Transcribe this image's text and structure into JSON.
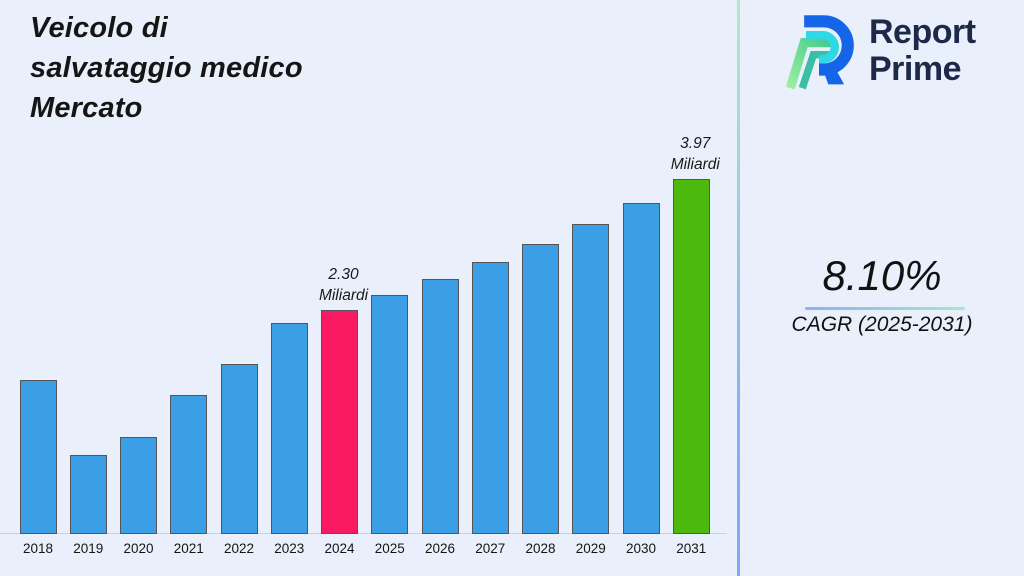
{
  "page": {
    "background": "#EAF0FB"
  },
  "header": {
    "title_lines": [
      "Veicolo di",
      "salvataggio medico",
      "Mercato"
    ],
    "title_full": "Veicolo di salvataggio medico Mercato"
  },
  "brand": {
    "line1": "Report",
    "line2": "Prime",
    "text_color": "#1E2949",
    "mark_colors": {
      "blue": "#1565E9",
      "cyan": "#2FD8E6",
      "green_light": "#9CEFA0",
      "green_teal": "#3ABEA6"
    }
  },
  "chart_data": {
    "type": "bar",
    "title": "Veicolo di salvataggio medico Mercato",
    "xlabel": "",
    "ylabel": "",
    "value_unit": "Miliardi",
    "grid": false,
    "legend": false,
    "y_axis_visible": false,
    "categories": [
      "2018",
      "2019",
      "2020",
      "2021",
      "2022",
      "2023",
      "2024",
      "2025",
      "2026",
      "2027",
      "2028",
      "2029",
      "2030",
      "2031"
    ],
    "values": [
      1.41,
      0.45,
      0.68,
      1.22,
      1.61,
      2.13,
      2.3,
      2.49,
      2.69,
      2.91,
      3.14,
      3.4,
      3.67,
      3.97
    ],
    "labeled_points": [
      {
        "year": "2024",
        "value": 2.3
      },
      {
        "year": "2031",
        "value": 3.97
      }
    ],
    "annotations": [
      {
        "year": "2024",
        "lines": [
          "2.30",
          "Miliardi"
        ]
      },
      {
        "year": "2031",
        "lines": [
          "3.97",
          "Miliardi"
        ]
      }
    ],
    "colors": {
      "default": "#3A9FE4",
      "by_year": {
        "2024": "#F91A63",
        "2031": "#4DB90F"
      },
      "bar_border": "#555555"
    }
  },
  "cagr": {
    "value": "8.10%",
    "label": "CAGR (2025-2031)"
  }
}
